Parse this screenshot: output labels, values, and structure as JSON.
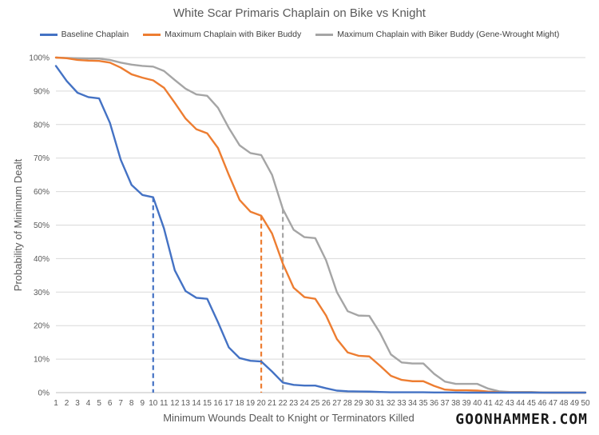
{
  "chart_data": {
    "type": "line",
    "title": "White Scar Primaris Chaplain on Bike vs Knight",
    "xlabel": "Minimum Wounds Dealt to Knight or Terminators Killed",
    "ylabel": "Probability of Minimum Dealt",
    "xlim": [
      1,
      50
    ],
    "ylim": [
      0,
      100
    ],
    "y_tick_suffix": "%",
    "x": [
      1,
      2,
      3,
      4,
      5,
      6,
      7,
      8,
      9,
      10,
      11,
      12,
      13,
      14,
      15,
      16,
      17,
      18,
      19,
      20,
      21,
      22,
      23,
      24,
      25,
      26,
      27,
      28,
      29,
      30,
      31,
      32,
      33,
      34,
      35,
      36,
      37,
      38,
      39,
      40,
      41,
      42,
      43,
      44,
      45,
      46,
      47,
      48,
      49,
      50
    ],
    "series": [
      {
        "name": "Baseline Chaplain",
        "color": "#4472C4",
        "values": [
          97.5,
          93,
          89.5,
          88.2,
          87.8,
          80.5,
          69.5,
          62,
          59,
          58.3,
          49,
          36.5,
          30.3,
          28.3,
          28,
          21,
          13.5,
          10.3,
          9.5,
          9.3,
          6.3,
          3,
          2.3,
          2.1,
          2.1,
          1.3,
          0.6,
          0.4,
          0.35,
          0.3,
          0.2,
          0.1,
          0.1,
          0.1,
          0.1,
          0.05,
          0.05,
          0.05,
          0,
          0,
          0,
          0,
          0,
          0,
          0,
          0,
          0,
          0,
          0,
          0
        ]
      },
      {
        "name": "Maximum Chaplain with Biker Buddy",
        "color": "#ED7D31",
        "values": [
          100,
          99.8,
          99.3,
          99.1,
          99,
          98.5,
          97,
          95,
          94,
          93.2,
          91,
          86.5,
          81.8,
          78.6,
          77.4,
          73,
          65,
          57.5,
          54,
          52.8,
          47.5,
          38.5,
          31.3,
          28.5,
          28,
          23,
          16,
          12,
          11,
          10.8,
          8,
          5,
          3.8,
          3.4,
          3.4,
          2,
          0.9,
          0.7,
          0.7,
          0.6,
          0.3,
          0.1,
          0.05,
          0.05,
          0.05,
          0,
          0,
          0,
          0,
          0
        ]
      },
      {
        "name": "Maximum Chaplain with Biker Buddy (Gene-Wrought Might)",
        "color": "#A5A5A5",
        "values": [
          100,
          99.9,
          99.8,
          99.7,
          99.7,
          99.3,
          98.5,
          97.9,
          97.5,
          97.3,
          96,
          93.3,
          90.7,
          89,
          88.6,
          85,
          79,
          73.8,
          71.5,
          70.9,
          65,
          54.8,
          48.6,
          46.4,
          46.1,
          39.5,
          30,
          24.3,
          23,
          22.9,
          17.8,
          11.4,
          9,
          8.7,
          8.7,
          5.6,
          3.3,
          2.6,
          2.6,
          2.6,
          1.2,
          0.4,
          0.2,
          0.2,
          0.2,
          0.05,
          0,
          0,
          0,
          0
        ]
      }
    ],
    "markers": [
      {
        "series": 0,
        "x": 10,
        "y": 58.3,
        "style": "dashed"
      },
      {
        "series": 1,
        "x": 20,
        "y": 52.8,
        "style": "dashed"
      },
      {
        "series": 2,
        "x": 22,
        "y": 54.8,
        "style": "dashed"
      }
    ],
    "grid": true,
    "legend": "top"
  },
  "brand": "GOONHAMMER.COM"
}
